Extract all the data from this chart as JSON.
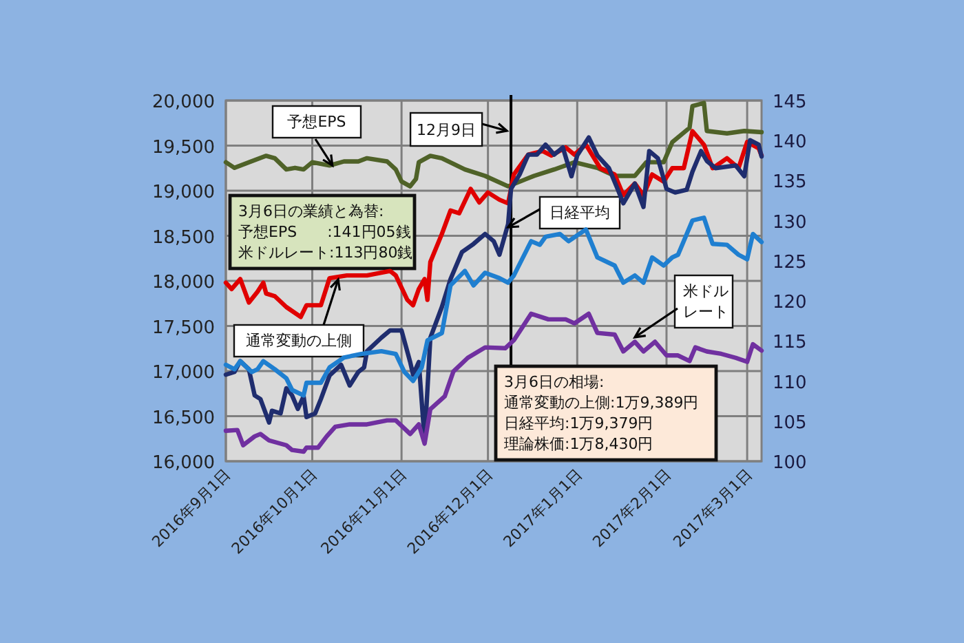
{
  "chart_data": {
    "type": "line",
    "xlim": [
      "2016-09-01",
      "2017-03-06"
    ],
    "xticks": [
      {
        "value": "2016-09-01",
        "label": "2016年9月1日"
      },
      {
        "value": "2016-10-01",
        "label": "2016年10月1日"
      },
      {
        "value": "2016-11-01",
        "label": "2016年11月1日"
      },
      {
        "value": "2016-12-01",
        "label": "2016年12月1日"
      },
      {
        "value": "2017-01-01",
        "label": "2017年1月1日"
      },
      {
        "value": "2017-02-01",
        "label": "2017年2月1日"
      },
      {
        "value": "2017-03-01",
        "label": "2017年3月1日"
      }
    ],
    "ylim": [
      16000,
      20000
    ],
    "yticks": [
      {
        "value": 16000,
        "label": "16,000"
      },
      {
        "value": 16500,
        "label": "16,500"
      },
      {
        "value": 17000,
        "label": "17,000"
      },
      {
        "value": 17500,
        "label": "17,500"
      },
      {
        "value": 18000,
        "label": "18,000"
      },
      {
        "value": 18500,
        "label": "18,500"
      },
      {
        "value": 19000,
        "label": "19,000"
      },
      {
        "value": 19500,
        "label": "19,500"
      },
      {
        "value": 20000,
        "label": "20,000"
      }
    ],
    "y2lim": [
      100,
      145
    ],
    "y2ticks": [
      100,
      105,
      110,
      115,
      120,
      125,
      130,
      135,
      140,
      145
    ],
    "grid": true,
    "marker": "none",
    "line_style": "solid",
    "series": [
      {
        "color": "#4f6228",
        "axis": "y2",
        "x": [
          "2016-09-01",
          "2016-09-04",
          "2016-09-09",
          "2016-09-15",
          "2016-09-18",
          "2016-09-22",
          "2016-09-25",
          "2016-09-28",
          "2016-10-01",
          "2016-10-07",
          "2016-10-12",
          "2016-10-17",
          "2016-10-20",
          "2016-10-27",
          "2016-10-30",
          "2016-11-01",
          "2016-11-04",
          "2016-11-06",
          "2016-11-07",
          "2016-11-11",
          "2016-11-15",
          "2016-11-23",
          "2016-11-30",
          "2016-12-08",
          "2016-12-17",
          "2016-12-24",
          "2016-12-31",
          "2017-01-08",
          "2017-01-14",
          "2017-01-21",
          "2017-01-25",
          "2017-01-31",
          "2017-02-03",
          "2017-02-09",
          "2017-02-10",
          "2017-02-14",
          "2017-02-15",
          "2017-02-22",
          "2017-02-28",
          "2017-03-06"
        ],
        "values": [
          137.3,
          136.6,
          137.3,
          138.1,
          137.8,
          136.4,
          136.6,
          136.4,
          137.3,
          136.9,
          137.4,
          137.4,
          137.8,
          137.4,
          136.4,
          134.9,
          134.3,
          135.2,
          137.3,
          138.1,
          137.8,
          136.4,
          135.6,
          134.3,
          135.6,
          136.4,
          137.3,
          136.6,
          135.6,
          135.6,
          137.3,
          137.3,
          139.8,
          141.6,
          144.3,
          144.7,
          141.2,
          140.9,
          141.2,
          141.05
        ]
      },
      {
        "color": "#e00000",
        "x": [
          "2016-09-01",
          "2016-09-03",
          "2016-09-06",
          "2016-09-09",
          "2016-09-12",
          "2016-09-14",
          "2016-09-15",
          "2016-09-18",
          "2016-09-22",
          "2016-09-27",
          "2016-09-29",
          "2016-10-04",
          "2016-10-07",
          "2016-10-13",
          "2016-10-20",
          "2016-10-28",
          "2016-10-30",
          "2016-11-03",
          "2016-11-05",
          "2016-11-07",
          "2016-11-09",
          "2016-11-10",
          "2016-11-11",
          "2016-11-15",
          "2016-11-18",
          "2016-11-21",
          "2016-11-25",
          "2016-11-28",
          "2016-12-01",
          "2016-12-05",
          "2016-12-08",
          "2016-12-10",
          "2016-12-15",
          "2016-12-20",
          "2016-12-23",
          "2016-12-28",
          "2016-12-31",
          "2017-01-04",
          "2017-01-09",
          "2017-01-14",
          "2017-01-17",
          "2017-01-21",
          "2017-01-24",
          "2017-01-27",
          "2017-01-31",
          "2017-02-03",
          "2017-02-07",
          "2017-02-10",
          "2017-02-14",
          "2017-02-17",
          "2017-02-22",
          "2017-02-26",
          "2017-03-01",
          "2017-03-05",
          "2017-03-06"
        ],
        "values": [
          17980,
          17910,
          18020,
          17760,
          17880,
          17980,
          17860,
          17830,
          17710,
          17600,
          17730,
          17730,
          18030,
          18060,
          18060,
          18110,
          18060,
          17790,
          17730,
          17910,
          18020,
          17790,
          18210,
          18520,
          18780,
          18750,
          19020,
          18870,
          18980,
          18900,
          18860,
          19180,
          19400,
          19440,
          19390,
          19480,
          19400,
          19510,
          19250,
          19180,
          18950,
          19080,
          18950,
          19180,
          19100,
          19250,
          19250,
          19660,
          19510,
          19250,
          19360,
          19250,
          19540,
          19470,
          19389
        ]
      },
      {
        "color": "#1f2d6e",
        "x": [
          "2016-09-01",
          "2016-09-04",
          "2016-09-06",
          "2016-09-09",
          "2016-09-11",
          "2016-09-13",
          "2016-09-16",
          "2016-09-17",
          "2016-09-20",
          "2016-09-22",
          "2016-09-24",
          "2016-09-26",
          "2016-09-28",
          "2016-09-29",
          "2016-10-02",
          "2016-10-04",
          "2016-10-07",
          "2016-10-11",
          "2016-10-14",
          "2016-10-17",
          "2016-10-19",
          "2016-10-20",
          "2016-10-25",
          "2016-10-28",
          "2016-11-01",
          "2016-11-04",
          "2016-11-05",
          "2016-11-07",
          "2016-11-09",
          "2016-11-11",
          "2016-11-15",
          "2016-11-18",
          "2016-11-22",
          "2016-11-26",
          "2016-11-30",
          "2016-12-03",
          "2016-12-05",
          "2016-12-08",
          "2016-12-09",
          "2016-12-12",
          "2016-12-15",
          "2016-12-18",
          "2016-12-21",
          "2016-12-24",
          "2016-12-27",
          "2016-12-30",
          "2017-01-01",
          "2017-01-05",
          "2017-01-08",
          "2017-01-12",
          "2017-01-15",
          "2017-01-17",
          "2017-01-21",
          "2017-01-24",
          "2017-01-26",
          "2017-01-29",
          "2017-02-01",
          "2017-02-04",
          "2017-02-08",
          "2017-02-10",
          "2017-02-13",
          "2017-02-15",
          "2017-02-18",
          "2017-02-25",
          "2017-02-28",
          "2017-03-02",
          "2017-03-05",
          "2017-03-06"
        ],
        "values": [
          16960,
          16990,
          17110,
          17020,
          16730,
          16690,
          16430,
          16560,
          16530,
          16810,
          16730,
          16580,
          16720,
          16490,
          16530,
          16690,
          16950,
          17070,
          16840,
          16990,
          17040,
          17220,
          17370,
          17450,
          17450,
          17100,
          16960,
          17100,
          16230,
          17370,
          17710,
          18020,
          18320,
          18410,
          18520,
          18440,
          18290,
          18630,
          19020,
          19180,
          19400,
          19400,
          19510,
          19400,
          19480,
          19160,
          19390,
          19590,
          19390,
          19250,
          19020,
          18860,
          19080,
          18820,
          19440,
          19360,
          19020,
          18980,
          19010,
          19210,
          19440,
          19330,
          19250,
          19280,
          19160,
          19560,
          19510,
          19379
        ]
      },
      {
        "color": "#1f7fd0",
        "x": [
          "2016-09-01",
          "2016-09-04",
          "2016-09-06",
          "2016-09-10",
          "2016-09-12",
          "2016-09-14",
          "2016-09-18",
          "2016-09-22",
          "2016-09-24",
          "2016-09-28",
          "2016-09-29",
          "2016-10-04",
          "2016-10-07",
          "2016-10-12",
          "2016-10-18",
          "2016-10-25",
          "2016-10-30",
          "2016-11-02",
          "2016-11-05",
          "2016-11-08",
          "2016-11-10",
          "2016-11-15",
          "2016-11-18",
          "2016-11-23",
          "2016-11-26",
          "2016-11-30",
          "2016-12-05",
          "2016-12-08",
          "2016-12-10",
          "2016-12-16",
          "2016-12-19",
          "2016-12-21",
          "2016-12-26",
          "2016-12-29",
          "2017-01-04",
          "2017-01-08",
          "2017-01-14",
          "2017-01-17",
          "2017-01-21",
          "2017-01-24",
          "2017-01-27",
          "2017-01-31",
          "2017-02-03",
          "2017-02-05",
          "2017-02-10",
          "2017-02-14",
          "2017-02-17",
          "2017-02-22",
          "2017-02-26",
          "2017-03-01",
          "2017-03-03",
          "2017-03-06"
        ],
        "values": [
          17070,
          17020,
          17110,
          16990,
          17020,
          17110,
          17020,
          16920,
          16790,
          16730,
          16870,
          16870,
          17040,
          17150,
          17190,
          17220,
          17190,
          16990,
          16890,
          17040,
          17340,
          17420,
          17950,
          18110,
          17950,
          18090,
          18030,
          17980,
          18060,
          18440,
          18400,
          18490,
          18520,
          18440,
          18570,
          18260,
          18170,
          17980,
          18060,
          17980,
          18260,
          18170,
          18260,
          18290,
          18670,
          18700,
          18410,
          18400,
          18290,
          18240,
          18520,
          18430
        ]
      },
      {
        "color": "#7030a0",
        "axis": "y2",
        "x": [
          "2016-09-01",
          "2016-09-05",
          "2016-09-07",
          "2016-09-11",
          "2016-09-13",
          "2016-09-16",
          "2016-09-22",
          "2016-09-24",
          "2016-09-28",
          "2016-09-29",
          "2016-10-03",
          "2016-10-06",
          "2016-10-09",
          "2016-10-14",
          "2016-10-20",
          "2016-10-27",
          "2016-10-30",
          "2016-11-04",
          "2016-11-07",
          "2016-11-09",
          "2016-11-11",
          "2016-11-16",
          "2016-11-19",
          "2016-11-24",
          "2016-11-30",
          "2016-12-07",
          "2016-12-10",
          "2016-12-16",
          "2016-12-22",
          "2016-12-28",
          "2016-12-31",
          "2017-01-05",
          "2017-01-08",
          "2017-01-14",
          "2017-01-17",
          "2017-01-21",
          "2017-01-24",
          "2017-01-28",
          "2017-02-01",
          "2017-02-05",
          "2017-02-09",
          "2017-02-11",
          "2017-02-15",
          "2017-02-20",
          "2017-02-25",
          "2017-03-01",
          "2017-03-03",
          "2017-03-06"
        ],
        "values": [
          103.8,
          103.9,
          102.0,
          103.1,
          103.4,
          102.6,
          102.0,
          101.4,
          101.2,
          101.7,
          101.7,
          103.1,
          104.3,
          104.6,
          104.6,
          105.1,
          105.1,
          103.4,
          104.6,
          102.2,
          106.5,
          108.1,
          111.2,
          112.9,
          114.2,
          114.1,
          115.1,
          118.4,
          117.7,
          117.7,
          117.2,
          118.4,
          116.0,
          115.8,
          113.7,
          114.9,
          113.7,
          114.9,
          113.2,
          113.2,
          112.5,
          114.2,
          113.7,
          113.4,
          112.9,
          112.4,
          114.6,
          113.8
        ]
      }
    ],
    "ref_lines": [
      {
        "axis": "x",
        "value": "2016-12-09",
        "label": "12月9日",
        "color": "#000000"
      }
    ],
    "annotations": [
      {
        "text": "予想EPS",
        "x": "2016-10-08",
        "y": 19280
      },
      {
        "text": "日経平均",
        "x": "2016-12-08",
        "y": 18595
      },
      {
        "text": "通常変動の上側",
        "x": "2016-10-10",
        "y": 18015
      },
      {
        "text": "米ドルレート",
        "x": "2017-01-21",
        "y": 17375
      },
      "3月6日の業績と為替:",
      "予想EPS　　:141円05銭",
      "米ドルレート:113円80銭",
      "3月6日の相場:",
      "通常変動の上側:1万9,389円",
      "日経平均:1万9,379円",
      "理論株価:1万8,430円"
    ]
  }
}
